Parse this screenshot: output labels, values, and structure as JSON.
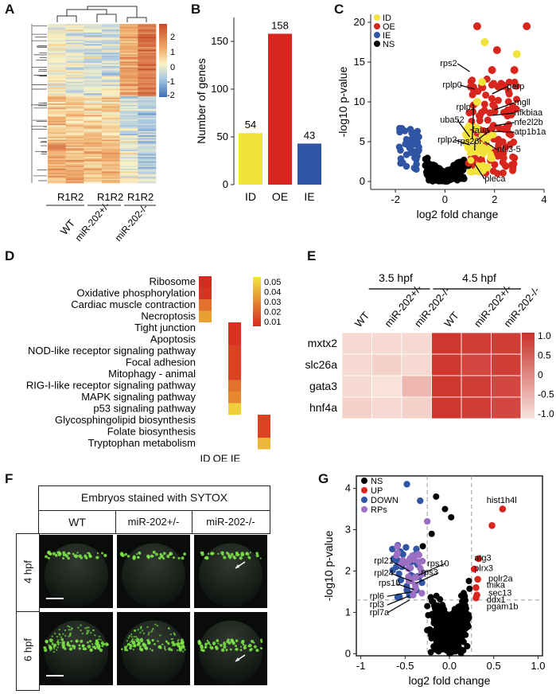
{
  "panel_labels": [
    "A",
    "B",
    "C",
    "D",
    "E",
    "F",
    "G"
  ],
  "colors": {
    "ID": "#f2e33b",
    "OE": "#d7261e",
    "IE": "#2f55a4",
    "NS": "#000000",
    "RPs": "#9b6fc2",
    "heat_high": "#d5453a",
    "heat_low": "#f7e0d8",
    "enrich_low": "#d62a20",
    "enrich_high": "#f3e640"
  },
  "panelA": {
    "colorbar_ticks": [
      "2",
      "1",
      "0",
      "-1",
      "-2"
    ],
    "col_labels": [
      "R1R2",
      "R1R2",
      "R1R2"
    ],
    "group_labels": [
      "WT",
      "miR-202+/-",
      "miR-202-/-"
    ]
  },
  "panelB": {
    "chart_data": {
      "type": "bar",
      "categories": [
        "ID",
        "OE",
        "IE"
      ],
      "values": [
        54,
        158,
        43
      ],
      "ylabel": "Number of genes",
      "ylim": [
        0,
        175
      ],
      "yticks": [
        "0",
        "50",
        "100",
        "150"
      ],
      "bar_colors": [
        "#f2e33b",
        "#d7261e",
        "#2f55a4"
      ]
    }
  },
  "panelC": {
    "chart_data": {
      "type": "scatter",
      "xlabel": "log2 fold change",
      "ylabel": "-log10 p-value",
      "xlim": [
        -3,
        4
      ],
      "ylim": [
        -1,
        21
      ],
      "xticks": [
        "-2",
        "0",
        "2",
        "4"
      ],
      "yticks": [
        "0",
        "5",
        "10",
        "15",
        "20"
      ],
      "legend": [
        "ID",
        "OE",
        "IE",
        "NS"
      ],
      "gene_labels": [
        "rps2",
        "rplp0",
        "perp",
        "mgll",
        "nfkbiaa",
        "nfe2l2b",
        "atp1b1a",
        "uba52",
        "rplp1",
        "faua",
        "rplp2",
        "rps26l",
        "nfil3-5",
        "pleca"
      ]
    }
  },
  "panelD": {
    "chart_data": {
      "type": "heatmap",
      "rows": [
        "Ribosome",
        "Oxidative phosphorylation",
        "Cardiac muscle contraction",
        "Necroptosis",
        "Tight junction",
        "Apoptosis",
        "NOD-like receptor signaling pathway",
        "Focal adhesion",
        "Mitophagy - animal",
        "RIG-I-like receptor signaling pathway",
        "MAPK signaling pathway",
        "p53 signaling pathway",
        "Glycosphingolipid biosynthesis",
        "Folate biosynthesis",
        "Tryptophan metabolism"
      ],
      "columns": [
        "ID",
        "OE",
        "IE"
      ],
      "row_column": [
        0,
        0,
        0,
        0,
        1,
        1,
        1,
        1,
        1,
        1,
        1,
        1,
        2,
        2,
        2
      ],
      "p_values": [
        0.01,
        0.012,
        0.025,
        0.035,
        0.012,
        0.012,
        0.015,
        0.015,
        0.015,
        0.025,
        0.03,
        0.045,
        0.015,
        0.015,
        0.04
      ],
      "colorbar_ticks": [
        "0.05",
        "0.04",
        "0.03",
        "0.02",
        "0.01"
      ]
    }
  },
  "panelE": {
    "chart_data": {
      "type": "heatmap",
      "rows": [
        "mxtx2",
        "slc26a",
        "gata3",
        "hnf4a"
      ],
      "columns": [
        "WT",
        "miR-202+/-",
        "miR-202-/-",
        "WT",
        "miR-202+/-",
        "miR-202-/-"
      ],
      "time_groups": [
        "3.5 hpf",
        "4.5 hpf"
      ],
      "values": [
        [
          -0.9,
          -0.9,
          -0.9,
          1.0,
          0.9,
          0.9
        ],
        [
          -0.9,
          -0.8,
          -0.9,
          1.0,
          0.8,
          0.9
        ],
        [
          -0.9,
          -1.0,
          -0.5,
          1.0,
          0.9,
          0.8
        ],
        [
          -0.8,
          -0.9,
          -0.8,
          1.0,
          0.9,
          0.8
        ]
      ],
      "colorbar_ticks": [
        "1.0",
        "0.5",
        "0",
        "-0.5",
        "-1.0"
      ]
    }
  },
  "panelF": {
    "title": "Embryos stained with SYTOX",
    "columns": [
      "WT",
      "miR-202+/-",
      "miR-202-/-"
    ],
    "rows": [
      "4 hpf",
      "6 hpf"
    ]
  },
  "panelG": {
    "chart_data": {
      "type": "scatter",
      "xlabel": "log2 fold change",
      "ylabel": "-log10 p-value",
      "xlim": [
        -1.05,
        1.05
      ],
      "ylim": [
        -0.05,
        4.3
      ],
      "xticks": [
        "-1",
        "-0.5",
        "0.0",
        "0.5",
        "1.0"
      ],
      "yticks": [
        "0",
        "1",
        "2",
        "3",
        "4"
      ],
      "thresholds": {
        "x": [
          -0.25,
          0.25
        ],
        "y": 1.3
      },
      "legend": [
        "NS",
        "UP",
        "DOWN",
        "RPs"
      ],
      "gene_labels_left": [
        "rpl21",
        "rpl24",
        "rps15",
        "rpl6",
        "rpl3",
        "rpl7a",
        "rps10",
        "rps3"
      ],
      "gene_labels_right": [
        "hist1h4l",
        "atg3",
        "plrx3",
        "polr2a",
        "tnika",
        "sec13",
        "ddx1",
        "pgam1b"
      ]
    }
  }
}
